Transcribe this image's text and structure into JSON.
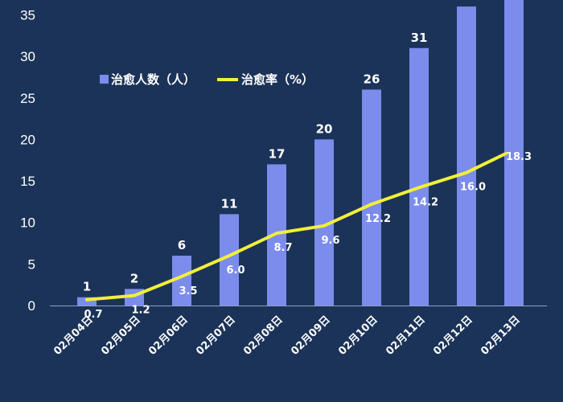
{
  "chart_data": {
    "type": "bar",
    "categories": [
      "02月04日",
      "02月05日",
      "02月06日",
      "02月07日",
      "02月08日",
      "02月09日",
      "02月10日",
      "02月11日",
      "02月12日",
      "02月13日"
    ],
    "series": [
      {
        "name": "治愈人数（人）",
        "type": "bar",
        "values": [
          1,
          2,
          6,
          11,
          17,
          20,
          26,
          31,
          36,
          40
        ],
        "color": "#7b8cec"
      },
      {
        "name": "治愈率（%）",
        "type": "line",
        "values": [
          0.7,
          1.2,
          3.5,
          6.0,
          8.7,
          9.6,
          12.2,
          14.2,
          16.0,
          18.3
        ],
        "color": "#f2ef3a"
      }
    ],
    "ylim": [
      0,
      37.5
    ],
    "yticks": [
      0,
      5,
      10,
      15,
      20,
      25,
      30,
      35
    ],
    "grid": false,
    "legend": "top-left"
  },
  "colors": {
    "background": "#1b3358",
    "axis": "#8fa3c4"
  }
}
